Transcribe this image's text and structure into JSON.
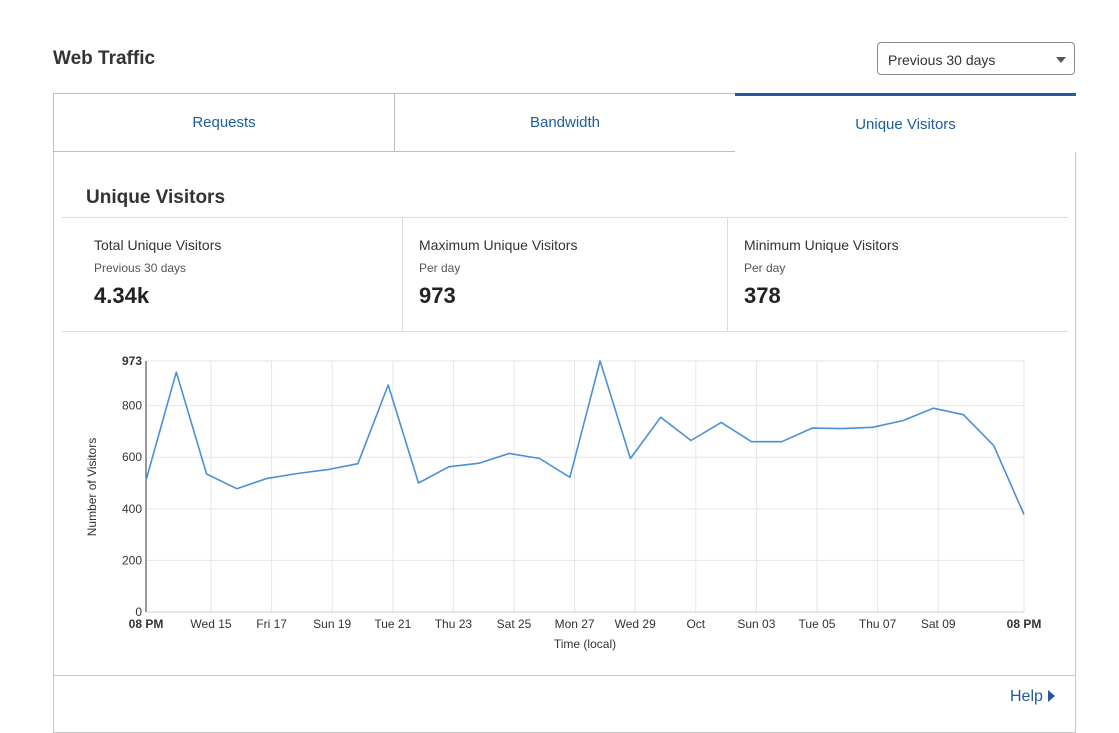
{
  "header": {
    "title": "Web Traffic",
    "range_select": {
      "value": "Previous 30 days"
    }
  },
  "tabs": [
    {
      "label": "Requests"
    },
    {
      "label": "Bandwidth"
    },
    {
      "label": "Unique Visitors",
      "active": true
    }
  ],
  "section": {
    "title": "Unique Visitors"
  },
  "stats": [
    {
      "label": "Total Unique Visitors",
      "sub": "Previous 30 days",
      "value": "4.34k"
    },
    {
      "label": "Maximum Unique Visitors",
      "sub": "Per day",
      "value": "973"
    },
    {
      "label": "Minimum Unique Visitors",
      "sub": "Per day",
      "value": "378"
    }
  ],
  "chart_data": {
    "type": "line",
    "ylabel": "Number of Visitors",
    "xlabel": "Time (local)",
    "ylim": [
      0,
      973
    ],
    "yticks": [
      "0",
      "200",
      "400",
      "600",
      "800",
      "973"
    ],
    "xtick_labels": [
      "08 PM",
      "Wed 15",
      "Fri 17",
      "Sun 19",
      "Tue 21",
      "Thu 23",
      "Sat 25",
      "Mon 27",
      "Wed 29",
      "Oct",
      "Sun 03",
      "Tue 05",
      "Thu 07",
      "Sat 09",
      "08 PM"
    ],
    "grid": true,
    "color": "#4a90d9",
    "series": [
      {
        "values": [
          510,
          930,
          535,
          478,
          518,
          537,
          552,
          575,
          880,
          500,
          563,
          577,
          615,
          595,
          522,
          973,
          595,
          755,
          665,
          735,
          660,
          660,
          713,
          711,
          716,
          742,
          790,
          765,
          645,
          378
        ]
      }
    ]
  },
  "footer": {
    "help_label": "Help"
  }
}
